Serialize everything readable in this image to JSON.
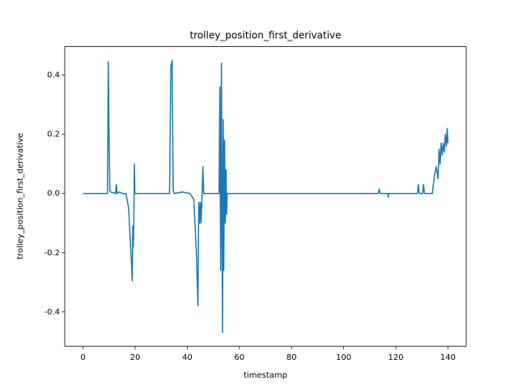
{
  "chart_data": {
    "type": "line",
    "title": "trolley_position_first_derivative",
    "x_label": "timestamp",
    "y_label": "trolley_position_first_derivative",
    "xlim": [
      -7,
      147
    ],
    "ylim": [
      -0.516,
      0.496
    ],
    "xticks": [
      0,
      20,
      40,
      60,
      80,
      100,
      120,
      140
    ],
    "yticks": [
      -0.4,
      -0.2,
      {
        "value": 0,
        "label": "0.0"
      },
      0.2,
      0.4
    ],
    "series": [
      {
        "name": "trolley_position_first_derivative",
        "color": "#1f77b4",
        "x": [
          0,
          9.4,
          9.7,
          10.0,
          10.3,
          10.6,
          12.5,
          12.8,
          13.1,
          14,
          15,
          16.5,
          17.5,
          18.5,
          18.9,
          19.1,
          19.3,
          19.5,
          19.7,
          19.9,
          20.2,
          33.2,
          33.7,
          34.2,
          34.6,
          35,
          38,
          41,
          42.5,
          43.5,
          44.1,
          44.4,
          44.7,
          45.0,
          45.3,
          45.7,
          46.0,
          46.3,
          52.2,
          52.5,
          52.8,
          53.1,
          53.5,
          53.8,
          54.0,
          54.3,
          54.6,
          54.9,
          55.1,
          55.3,
          55.6,
          113.3,
          113.6,
          114,
          116.9,
          117.1,
          117.3,
          128.3,
          128.6,
          129,
          130.3,
          130.6,
          131,
          134,
          134.8,
          135.5,
          136.2,
          136.6,
          137.0,
          137.4,
          137.8,
          138.2,
          138.6,
          139.0,
          139.4,
          139.7,
          140
        ],
        "values": [
          0,
          0,
          0.445,
          0.2,
          0.01,
          0.005,
          0,
          0.03,
          0,
          0.005,
          0,
          0,
          -0.05,
          -0.22,
          -0.295,
          -0.11,
          -0.18,
          -0.1,
          0.1,
          0.0,
          0,
          0,
          0.43,
          0.45,
          0.01,
          0.0,
          0.005,
          0.0,
          -0.02,
          -0.2,
          -0.38,
          -0.03,
          -0.1,
          -0.03,
          -0.1,
          0.0,
          0.09,
          0,
          0,
          0.36,
          -0.26,
          0.44,
          -0.47,
          0.25,
          -0.26,
          0.18,
          -0.1,
          0.08,
          -0.07,
          0.0,
          0,
          0,
          0.015,
          0,
          0,
          -0.012,
          0,
          0,
          0.03,
          0,
          0,
          0.03,
          0,
          0,
          0.06,
          0.09,
          0.05,
          0.15,
          0.1,
          0.17,
          0.13,
          0.17,
          0.14,
          0.2,
          0.16,
          0.22,
          0.17
        ]
      }
    ]
  }
}
